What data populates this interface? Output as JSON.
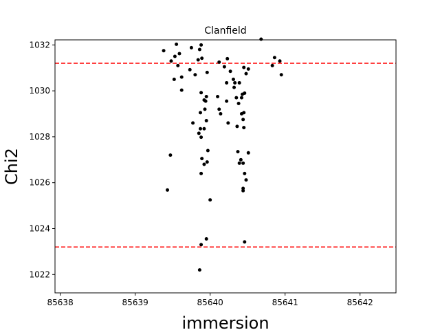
{
  "chart_data": {
    "type": "scatter",
    "title": "Clanfield",
    "xlabel": "immersion",
    "ylabel": "Chi2",
    "xlim": [
      85637.93,
      85642.48
    ],
    "ylim": [
      1021.2,
      1032.22
    ],
    "x_ticks": [
      85638,
      85639,
      85640,
      85641,
      85642
    ],
    "x_tick_labels": [
      "85638",
      "85639",
      "85640",
      "85641",
      "85642"
    ],
    "y_ticks": [
      1022,
      1024,
      1026,
      1028,
      1030,
      1032
    ],
    "y_tick_labels": [
      "1022",
      "1024",
      "1026",
      "1028",
      "1030",
      "1032"
    ],
    "grid": false,
    "marker_color": "#000000",
    "reference_lines": [
      {
        "y": 1031.2,
        "style": "dashed",
        "color": "#ff0000"
      },
      {
        "y": 1023.2,
        "style": "dashed",
        "color": "#ff0000"
      }
    ],
    "points": [
      [
        85639.38,
        1031.75
      ],
      [
        85639.48,
        1031.3
      ],
      [
        85639.53,
        1031.5
      ],
      [
        85639.55,
        1032.03
      ],
      [
        85639.57,
        1031.1
      ],
      [
        85639.59,
        1031.62
      ],
      [
        85639.52,
        1030.5
      ],
      [
        85639.62,
        1030.6
      ],
      [
        85639.62,
        1030.03
      ],
      [
        85639.73,
        1030.92
      ],
      [
        85639.75,
        1031.88
      ],
      [
        85639.8,
        1030.7
      ],
      [
        85639.84,
        1031.35
      ],
      [
        85639.86,
        1031.8
      ],
      [
        85639.88,
        1032.0
      ],
      [
        85639.89,
        1031.42
      ],
      [
        85639.96,
        1030.8
      ],
      [
        85639.88,
        1029.92
      ],
      [
        85639.92,
        1029.6
      ],
      [
        85639.94,
        1029.55
      ],
      [
        85639.95,
        1029.75
      ],
      [
        85639.93,
        1029.2
      ],
      [
        85639.87,
        1029.05
      ],
      [
        85639.77,
        1028.6
      ],
      [
        85639.95,
        1028.7
      ],
      [
        85639.85,
        1028.15
      ],
      [
        85639.87,
        1028.35
      ],
      [
        85639.92,
        1028.35
      ],
      [
        85639.88,
        1027.98
      ],
      [
        85639.47,
        1027.2
      ],
      [
        85639.97,
        1027.4
      ],
      [
        85639.89,
        1027.05
      ],
      [
        85639.92,
        1026.8
      ],
      [
        85639.96,
        1026.9
      ],
      [
        85639.88,
        1026.4
      ],
      [
        85639.43,
        1025.68
      ],
      [
        85640.0,
        1025.25
      ],
      [
        85640.12,
        1031.25
      ],
      [
        85640.19,
        1031.05
      ],
      [
        85640.23,
        1031.4
      ],
      [
        85640.27,
        1030.85
      ],
      [
        85640.31,
        1030.5
      ],
      [
        85640.33,
        1030.35
      ],
      [
        85640.22,
        1030.35
      ],
      [
        85640.32,
        1030.15
      ],
      [
        85640.39,
        1030.35
      ],
      [
        85640.45,
        1031.02
      ],
      [
        85640.48,
        1030.75
      ],
      [
        85640.51,
        1030.95
      ],
      [
        85640.43,
        1029.85
      ],
      [
        85640.46,
        1029.9
      ],
      [
        85640.42,
        1029.7
      ],
      [
        85640.35,
        1029.7
      ],
      [
        85640.38,
        1029.45
      ],
      [
        85640.1,
        1029.75
      ],
      [
        85640.22,
        1029.55
      ],
      [
        85640.12,
        1029.2
      ],
      [
        85640.14,
        1029.0
      ],
      [
        85640.42,
        1029.0
      ],
      [
        85640.45,
        1029.05
      ],
      [
        85640.44,
        1028.75
      ],
      [
        85640.24,
        1028.6
      ],
      [
        85640.36,
        1028.45
      ],
      [
        85640.45,
        1028.4
      ],
      [
        85640.37,
        1027.35
      ],
      [
        85640.41,
        1027.0
      ],
      [
        85640.39,
        1026.85
      ],
      [
        85640.44,
        1026.85
      ],
      [
        85640.46,
        1026.4
      ],
      [
        85640.48,
        1026.12
      ],
      [
        85640.44,
        1025.75
      ],
      [
        85640.44,
        1025.65
      ],
      [
        85640.51,
        1027.3
      ],
      [
        85640.68,
        1032.25
      ],
      [
        85640.86,
        1031.45
      ],
      [
        85640.83,
        1031.1
      ],
      [
        85640.93,
        1031.3
      ],
      [
        85640.95,
        1030.7
      ],
      [
        85639.88,
        1023.3
      ],
      [
        85639.95,
        1023.55
      ],
      [
        85640.46,
        1023.42
      ],
      [
        85639.86,
        1022.2
      ]
    ]
  }
}
